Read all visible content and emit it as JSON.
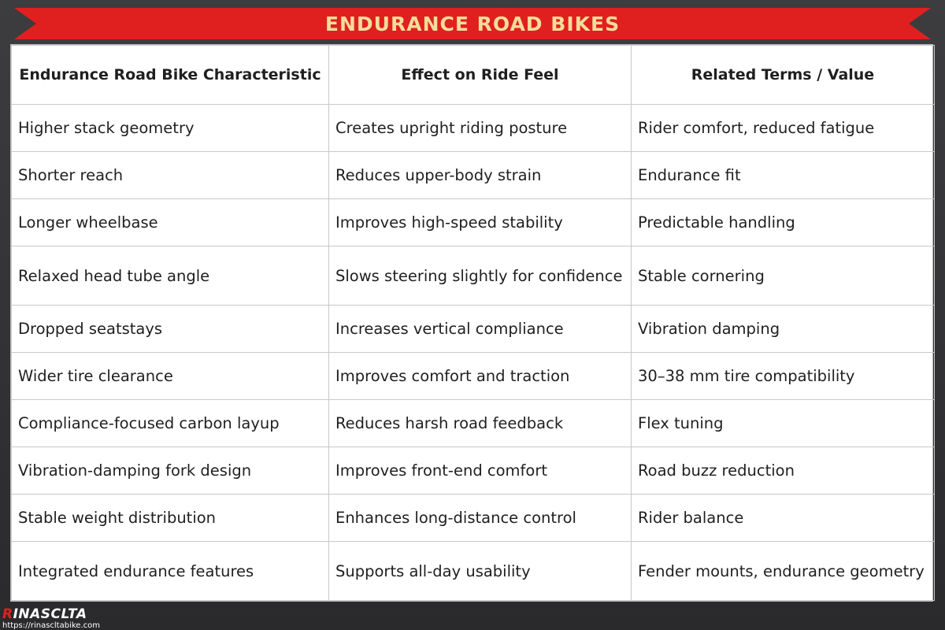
{
  "title": "ENDURANCE ROAD BIKES",
  "colors": {
    "banner": "#e0201e",
    "title_text": "#f4dc9a",
    "background": "#333335"
  },
  "table": {
    "headers": [
      "Endurance Road Bike Characteristic",
      "Effect on Ride Feel",
      "Related Terms / Value"
    ],
    "rows": [
      [
        "Higher stack geometry",
        "Creates upright riding posture",
        "Rider comfort, reduced fatigue"
      ],
      [
        "Shorter reach",
        "Reduces upper-body strain",
        "Endurance fit"
      ],
      [
        "Longer wheelbase",
        "Improves high-speed stability",
        "Predictable handling"
      ],
      [
        "Relaxed head tube angle",
        "Slows steering slightly for confidence",
        "Stable cornering"
      ],
      [
        "Dropped seatstays",
        "Increases vertical compliance",
        "Vibration damping"
      ],
      [
        "Wider tire clearance",
        "Improves comfort and traction",
        "30–38 mm tire compatibility"
      ],
      [
        "Compliance-focused carbon layup",
        "Reduces harsh road feedback",
        "Flex tuning"
      ],
      [
        "Vibration-damping fork design",
        "Improves front-end comfort",
        "Road buzz reduction"
      ],
      [
        "Stable weight distribution",
        "Enhances long-distance control",
        "Rider balance"
      ],
      [
        "Integrated endurance features",
        "Supports all-day usability",
        "Fender mounts, endurance geometry"
      ]
    ]
  },
  "footer": {
    "logo_first": "R",
    "logo_rest": "INASCLTA",
    "url": "https://rinascltabike.com"
  }
}
